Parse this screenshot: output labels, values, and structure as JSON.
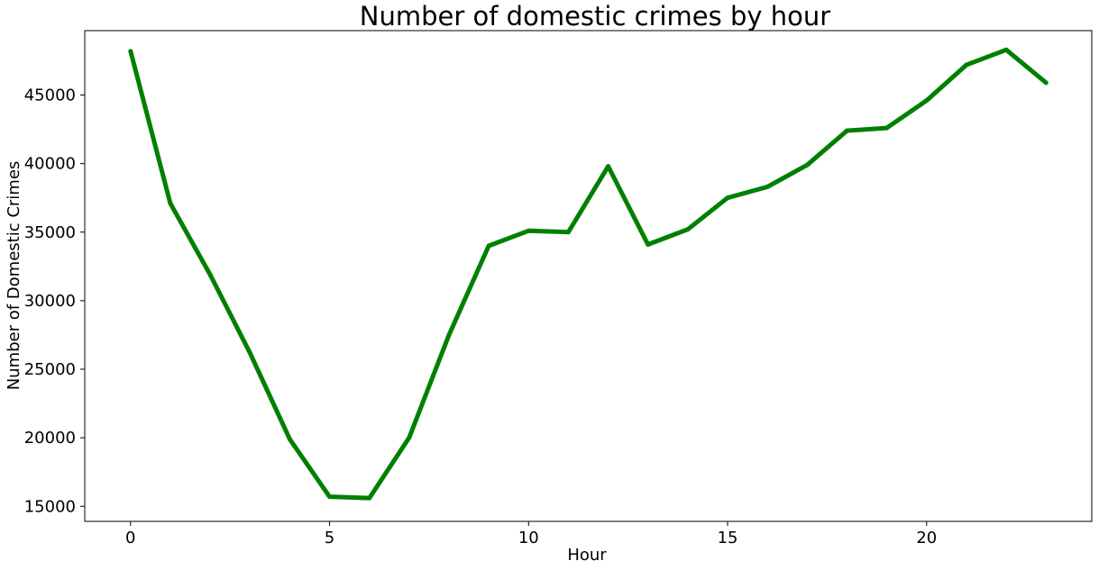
{
  "chart_data": {
    "type": "line",
    "title": "Number of domestic crimes by hour",
    "xlabel": "Hour",
    "ylabel": "Number of Domestic Crimes",
    "xlim": [
      -1.15,
      24.15
    ],
    "ylim": [
      13900,
      49700
    ],
    "xticks": [
      0,
      5,
      10,
      15,
      20
    ],
    "yticks": [
      15000,
      20000,
      25000,
      30000,
      35000,
      40000,
      45000
    ],
    "grid": false,
    "series": [
      {
        "color": "#008000",
        "x": [
          0,
          1,
          2,
          3,
          4,
          5,
          6,
          7,
          8,
          9,
          10,
          11,
          12,
          13,
          14,
          15,
          16,
          17,
          18,
          19,
          20,
          21,
          22,
          23
        ],
        "y": [
          48200,
          37100,
          31900,
          26200,
          19900,
          15700,
          15600,
          20000,
          27500,
          34000,
          35100,
          35000,
          39800,
          34100,
          35200,
          37500,
          38300,
          39900,
          42400,
          42600,
          44600,
          47200,
          48300,
          45900
        ]
      }
    ]
  }
}
